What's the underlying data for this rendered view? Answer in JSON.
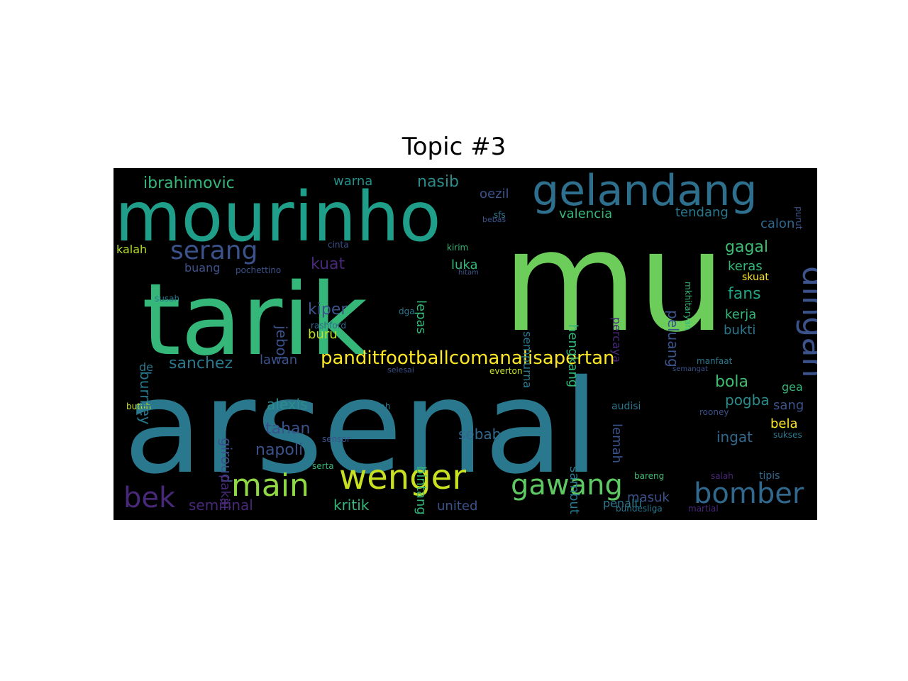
{
  "title": "Topic #3",
  "colors": {
    "background": "#000000",
    "palette": [
      "#6ccd5a",
      "#2a788e",
      "#1f9e89",
      "#35b779",
      "#3b528b",
      "#482878",
      "#c8e020",
      "#fde725",
      "#31688e",
      "#440154"
    ]
  },
  "words": [
    {
      "text": "arsenal",
      "color": "#2a788e",
      "vertical": false
    },
    {
      "text": "mu",
      "color": "#6ccd5a",
      "vertical": false
    },
    {
      "text": "tarik",
      "color": "#35b779",
      "vertical": false
    },
    {
      "text": "mourinho",
      "color": "#1f9e89",
      "vertical": false
    },
    {
      "text": "gelandang",
      "color": "#2e6f8e",
      "vertical": false
    },
    {
      "text": "dingan",
      "color": "#3b528b",
      "vertical": true
    },
    {
      "text": "wenger",
      "color": "#c8e020",
      "vertical": false
    },
    {
      "text": "main",
      "color": "#8fd744",
      "vertical": false
    },
    {
      "text": "gawang",
      "color": "#5ec962",
      "vertical": false
    },
    {
      "text": "bomber",
      "color": "#31688e",
      "vertical": false
    },
    {
      "text": "bek",
      "color": "#482878",
      "vertical": false
    },
    {
      "text": "serang",
      "color": "#3b528b",
      "vertical": false
    },
    {
      "text": "panditfootballcomanalisapertan",
      "color": "#fde725",
      "vertical": false
    },
    {
      "text": "ibrahimovic",
      "color": "#35b779",
      "vertical": false
    },
    {
      "text": "nasib",
      "color": "#2c8c8c",
      "vertical": false
    },
    {
      "text": "warna",
      "color": "#21918c",
      "vertical": false
    },
    {
      "text": "oezil",
      "color": "#3b528b",
      "vertical": false
    },
    {
      "text": "valencia",
      "color": "#35b779",
      "vertical": false
    },
    {
      "text": "tendang",
      "color": "#2a788e",
      "vertical": false
    },
    {
      "text": "calon",
      "color": "#31688e",
      "vertical": false
    },
    {
      "text": "gagal",
      "color": "#3fbc73",
      "vertical": false
    },
    {
      "text": "keras",
      "color": "#35b779",
      "vertical": false
    },
    {
      "text": "fans",
      "color": "#21a585",
      "vertical": false
    },
    {
      "text": "kerja",
      "color": "#35b779",
      "vertical": false
    },
    {
      "text": "bukti",
      "color": "#2a788e",
      "vertical": false
    },
    {
      "text": "bola",
      "color": "#3fbc73",
      "vertical": false
    },
    {
      "text": "pogba",
      "color": "#2c8c8c",
      "vertical": false
    },
    {
      "text": "ingat",
      "color": "#31688e",
      "vertical": false
    },
    {
      "text": "kuat",
      "color": "#482878",
      "vertical": false
    },
    {
      "text": "kiper",
      "color": "#3b528b",
      "vertical": false
    },
    {
      "text": "luka",
      "color": "#35b779",
      "vertical": false
    },
    {
      "text": "buru",
      "color": "#bddf26",
      "vertical": false
    },
    {
      "text": "sanchez",
      "color": "#2a788e",
      "vertical": false
    },
    {
      "text": "lawan",
      "color": "#3b528b",
      "vertical": false
    },
    {
      "text": "buang",
      "color": "#3b528b",
      "vertical": false
    },
    {
      "text": "pochettino",
      "color": "#3b528b",
      "vertical": false
    },
    {
      "text": "kalah",
      "color": "#b5de2b",
      "vertical": false
    },
    {
      "text": "alexis",
      "color": "#2c8c8c",
      "vertical": false
    },
    {
      "text": "tahan",
      "color": "#3b528b",
      "vertical": false
    },
    {
      "text": "napoli",
      "color": "#3b528b",
      "vertical": false
    },
    {
      "text": "sebab",
      "color": "#31688e",
      "vertical": false
    },
    {
      "text": "kritik",
      "color": "#35b779",
      "vertical": false
    },
    {
      "text": "united",
      "color": "#3b528b",
      "vertical": false
    },
    {
      "text": "masuk",
      "color": "#3b528b",
      "vertical": false
    },
    {
      "text": "penalti",
      "color": "#2a788e",
      "vertical": false
    },
    {
      "text": "semifinal",
      "color": "#482878",
      "vertical": false
    },
    {
      "text": "de",
      "color": "#2a788e",
      "vertical": false
    },
    {
      "text": "rashford",
      "color": "#31688e",
      "vertical": false
    },
    {
      "text": "susah",
      "color": "#2a788e",
      "vertical": false
    },
    {
      "text": "cinta",
      "color": "#3b528b",
      "vertical": false
    },
    {
      "text": "kirim",
      "color": "#35b779",
      "vertical": false
    },
    {
      "text": "hitam",
      "color": "#3b528b",
      "vertical": false
    },
    {
      "text": "dga",
      "color": "#2a788e",
      "vertical": false
    },
    {
      "text": "sfs",
      "color": "#2a788e",
      "vertical": false
    },
    {
      "text": "bebas",
      "color": "#3b528b",
      "vertical": false
    },
    {
      "text": "butuh",
      "color": "#c8e020",
      "vertical": false
    },
    {
      "text": "bocah",
      "color": "#2a788e",
      "vertical": false
    },
    {
      "text": "sensor",
      "color": "#3b528b",
      "vertical": false
    },
    {
      "text": "serta",
      "color": "#35b779",
      "vertical": false
    },
    {
      "text": "bareng",
      "color": "#3fbc73",
      "vertical": false
    },
    {
      "text": "selesai",
      "color": "#3b528b",
      "vertical": false
    },
    {
      "text": "everton",
      "color": "#c8e020",
      "vertical": false
    },
    {
      "text": "manfaat",
      "color": "#2a788e",
      "vertical": false
    },
    {
      "text": "semangat",
      "color": "#3b528b",
      "vertical": false
    },
    {
      "text": "audisi",
      "color": "#2a788e",
      "vertical": false
    },
    {
      "text": "rooney",
      "color": "#3b528b",
      "vertical": false
    },
    {
      "text": "gea",
      "color": "#35b779",
      "vertical": false
    },
    {
      "text": "sang",
      "color": "#3b528b",
      "vertical": false
    },
    {
      "text": "bela",
      "color": "#fde725",
      "vertical": false
    },
    {
      "text": "sukses",
      "color": "#2a788e",
      "vertical": false
    },
    {
      "text": "tipis",
      "color": "#31688e",
      "vertical": false
    },
    {
      "text": "salah",
      "color": "#482878",
      "vertical": false
    },
    {
      "text": "bundesliga",
      "color": "#2a788e",
      "vertical": false
    },
    {
      "text": "martial",
      "color": "#482878",
      "vertical": false
    },
    {
      "text": "skuat",
      "color": "#fde725",
      "vertical": false
    },
    {
      "text": "purut",
      "color": "#3b528b",
      "vertical": true
    },
    {
      "text": "mkhitaryan",
      "color": "#35b779",
      "vertical": true
    },
    {
      "text": "peluang",
      "color": "#3b528b",
      "vertical": true
    },
    {
      "text": "percaya",
      "color": "#482878",
      "vertical": true
    },
    {
      "text": "hengkang",
      "color": "#35b779",
      "vertical": true
    },
    {
      "text": "sempurna",
      "color": "#2a788e",
      "vertical": true
    },
    {
      "text": "lepas",
      "color": "#35b779",
      "vertical": true
    },
    {
      "text": "jebol",
      "color": "#3b528b",
      "vertical": true
    },
    {
      "text": "burnley",
      "color": "#2a788e",
      "vertical": true
    },
    {
      "text": "giroud",
      "color": "#3b528b",
      "vertical": true
    },
    {
      "text": "pakai",
      "color": "#482878",
      "vertical": true
    },
    {
      "text": "bintang",
      "color": "#35b779",
      "vertical": true
    },
    {
      "text": "sambut",
      "color": "#2a788e",
      "vertical": true
    },
    {
      "text": "lemah",
      "color": "#3b528b",
      "vertical": true
    }
  ]
}
